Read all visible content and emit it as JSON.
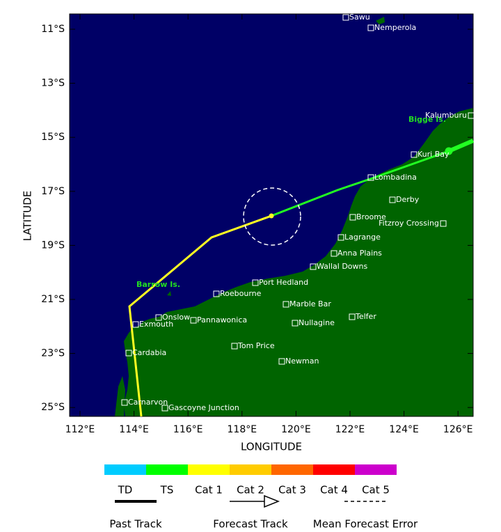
{
  "map": {
    "x_axis_label": "LONGITUDE",
    "y_axis_label": "LATITUDE",
    "xticks": [
      {
        "value": 112,
        "label": "112°E"
      },
      {
        "value": 114,
        "label": "114°E"
      },
      {
        "value": 116,
        "label": "116°E"
      },
      {
        "value": 118,
        "label": "118°E"
      },
      {
        "value": 120,
        "label": "120°E"
      },
      {
        "value": 122,
        "label": "122°E"
      },
      {
        "value": 124,
        "label": "124°E"
      },
      {
        "value": 126,
        "label": "126°E"
      }
    ],
    "yticks": [
      {
        "value": 11,
        "label": "11°S"
      },
      {
        "value": 13,
        "label": "13°S"
      },
      {
        "value": 15,
        "label": "15°S"
      },
      {
        "value": 17,
        "label": "17°S"
      },
      {
        "value": 19,
        "label": "19°S"
      },
      {
        "value": 21,
        "label": "21°S"
      },
      {
        "value": 23,
        "label": "23°S"
      },
      {
        "value": 25,
        "label": "25°S"
      }
    ],
    "places": [
      "Sawu",
      "Nemperola",
      "Kalumburu",
      "Kuri Bay",
      "Lombadina",
      "Derby",
      "Broome",
      "Fitzroy Crossing",
      "Lagrange",
      "Anna Plains",
      "Wallal Downs",
      "Port Hedland",
      "Roebourne",
      "Marble Bar",
      "Onslow",
      "Pannawonica",
      "Telfer",
      "Exmouth",
      "Nullagine",
      "Tom Price",
      "Cardabia",
      "Newman",
      "Carnarvon",
      "Gascoyne Junction"
    ],
    "islands": [
      "Bigge Is.",
      "Barrow Is."
    ]
  },
  "legend": {
    "categories": [
      "TD",
      "TS",
      "Cat 1",
      "Cat 2",
      "Cat 3",
      "Cat 4",
      "Cat 5"
    ],
    "colors": [
      "#00ccff",
      "#00ff00",
      "#ffff00",
      "#ffcc00",
      "#ff6600",
      "#ff0000",
      "#cc00cc"
    ],
    "tracks": [
      "Past Track",
      "Forecast Track",
      "Mean Forecast Error"
    ]
  }
}
